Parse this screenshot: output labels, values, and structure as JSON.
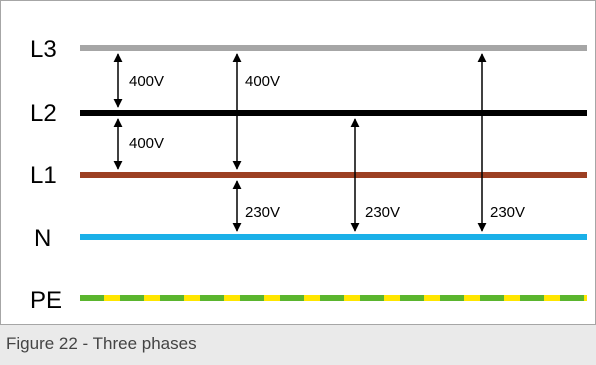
{
  "lines": {
    "l3": {
      "label": "L3",
      "color": "#a6a6a6"
    },
    "l2": {
      "label": "L2",
      "color": "#000000"
    },
    "l1": {
      "label": "L1",
      "color": "#9c3f22"
    },
    "n": {
      "label": "N",
      "color": "#1ab0e8"
    },
    "pe": {
      "label": "PE",
      "colors": [
        "#ffe600",
        "#5ab52e"
      ]
    }
  },
  "voltages": {
    "l3_l2": "400V",
    "l2_l1": "400V",
    "l3_l1": "400V",
    "l1_n": "230V",
    "l2_n": "230V",
    "l3_n": "230V"
  },
  "caption": "Figure 22 - Three phases"
}
